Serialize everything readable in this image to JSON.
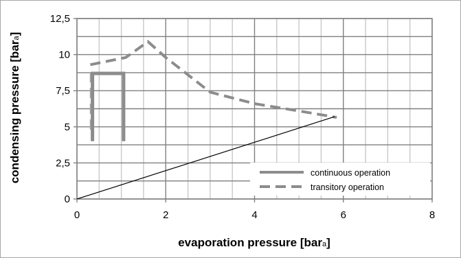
{
  "chart_data": {
    "type": "line",
    "xlabel": "evaporation pressure [bara]",
    "ylabel": "condensing pressure [bara]",
    "xlim": [
      0,
      8
    ],
    "ylim": [
      0,
      12.5
    ],
    "x_ticks": [
      "0",
      "2",
      "4",
      "6",
      "8"
    ],
    "y_ticks": [
      "0",
      "2,5",
      "5",
      "7,5",
      "10",
      "12,5"
    ],
    "grid": true,
    "legend_position": "bottom-right",
    "series": [
      {
        "name": "continuous operation",
        "style": "solid",
        "color": "#8c8c8c",
        "points": [
          [
            0.35,
            4.0
          ],
          [
            0.35,
            8.7
          ],
          [
            1.05,
            8.7
          ],
          [
            1.05,
            4.0
          ]
        ]
      },
      {
        "name": "transitory operation",
        "style": "dashed",
        "color": "#8c8c8c",
        "points": [
          [
            0.3,
            9.3
          ],
          [
            1.1,
            9.8
          ],
          [
            1.6,
            10.9
          ],
          [
            2.0,
            9.8
          ],
          [
            3.0,
            7.4
          ],
          [
            4.0,
            6.6
          ],
          [
            5.0,
            6.1
          ],
          [
            5.85,
            5.65
          ]
        ]
      },
      {
        "name": "",
        "style": "thin",
        "color": "#000000",
        "points": [
          [
            0,
            0
          ],
          [
            5.8,
            5.7
          ]
        ]
      }
    ],
    "extra_marks": [
      {
        "style": "dashed",
        "color": "#aaaaaa",
        "points": [
          [
            0.32,
            4.8
          ],
          [
            0.32,
            9.0
          ]
        ]
      }
    ]
  }
}
